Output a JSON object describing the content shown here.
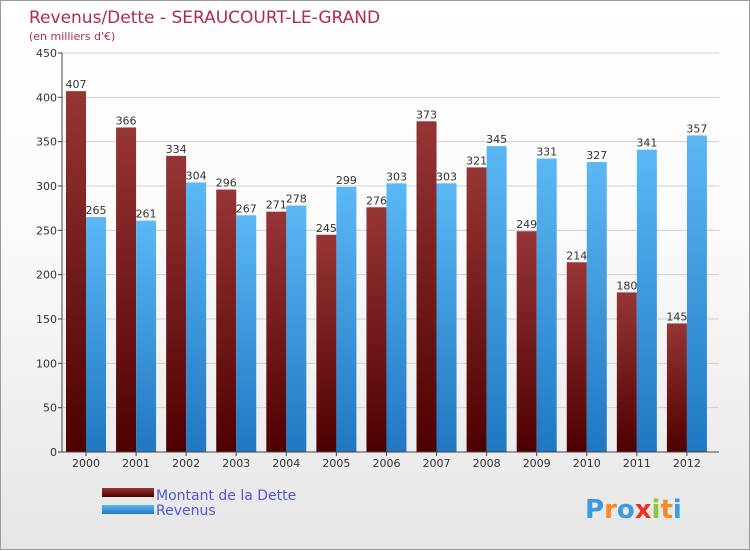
{
  "chart_data": {
    "type": "bar",
    "title": "Revenus/Dette - SERAUCOURT-LE-GRAND",
    "subtitle": "(en milliers d'€)",
    "categories": [
      "2000",
      "2001",
      "2002",
      "2003",
      "2004",
      "2005",
      "2006",
      "2007",
      "2008",
      "2009",
      "2010",
      "2011",
      "2012"
    ],
    "series": [
      {
        "name": "Montant de la Dette",
        "values": [
          407,
          366,
          334,
          296,
          271,
          245,
          276,
          373,
          321,
          249,
          214,
          180,
          145
        ],
        "color": "#7a1a1a"
      },
      {
        "name": "Revenus",
        "values": [
          265,
          261,
          304,
          267,
          278,
          299,
          303,
          303,
          345,
          331,
          327,
          341,
          357
        ],
        "color": "#3b9ae0"
      }
    ],
    "yticks": [
      0,
      50,
      100,
      150,
      200,
      250,
      300,
      350,
      400,
      450
    ],
    "ylim": [
      0,
      450
    ],
    "grid": true,
    "legend_position": "bottom-left"
  },
  "branding": {
    "logo_letters": [
      "P",
      "r",
      "o",
      "x",
      "i",
      "t",
      "i"
    ],
    "logo_colors": [
      "#3b9ae0",
      "#f28c28",
      "#3b9ae0",
      "#e8352b",
      "#8cc63f",
      "#f28c28",
      "#3b9ae0"
    ]
  }
}
